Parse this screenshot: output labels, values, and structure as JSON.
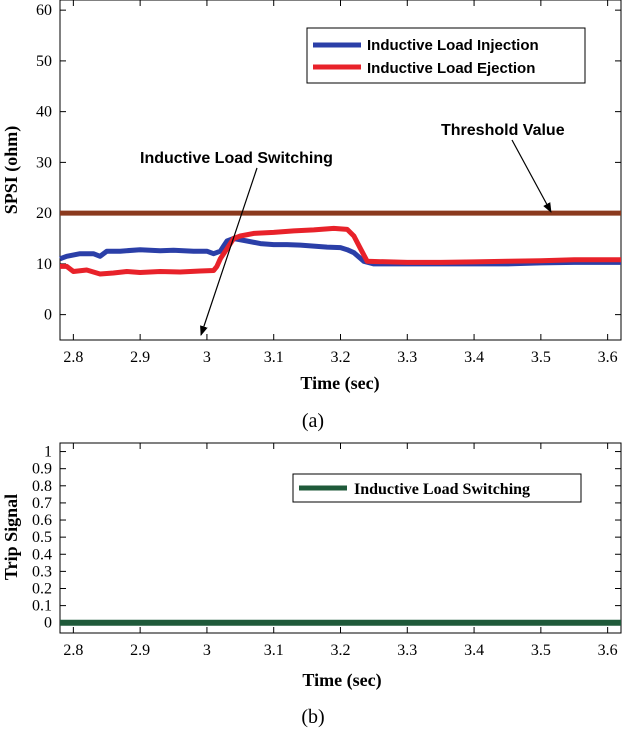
{
  "colors": {
    "injection": "#2b3fa8",
    "ejection": "#e8222a",
    "threshold": "#8b3a1e",
    "trip": "#1f5a3a",
    "axis": "#000000"
  },
  "chart_data": [
    {
      "type": "line",
      "caption": "(a)",
      "xlabel": "Time (sec)",
      "ylabel": "SPSI (ohm)",
      "xlim": [
        2.78,
        3.62
      ],
      "ylim": [
        -5,
        62
      ],
      "xticks": [
        2.8,
        2.9,
        3,
        3.1,
        3.2,
        3.3,
        3.4,
        3.5,
        3.6
      ],
      "xtick_labels": [
        "2.8",
        "2.9",
        "3",
        "3.1",
        "3.2",
        "3.3",
        "3.4",
        "3.5",
        "3.6"
      ],
      "yticks": [
        0,
        10,
        20,
        30,
        40,
        50,
        60
      ],
      "ytick_labels": [
        "0",
        "10",
        "20",
        "30",
        "40",
        "50",
        "60"
      ],
      "legend_position": "top-right",
      "series": [
        {
          "name": "Inductive Load Injection",
          "color_key": "injection",
          "x": [
            2.78,
            2.79,
            2.81,
            2.83,
            2.84,
            2.85,
            2.87,
            2.9,
            2.93,
            2.95,
            2.98,
            3.0,
            3.01,
            3.02,
            3.025,
            3.03,
            3.04,
            3.06,
            3.08,
            3.1,
            3.12,
            3.14,
            3.16,
            3.18,
            3.2,
            3.21,
            3.22,
            3.235,
            3.25,
            3.3,
            3.35,
            3.4,
            3.45,
            3.5,
            3.55,
            3.6,
            3.62
          ],
          "y": [
            11,
            11.5,
            12,
            12,
            11.5,
            12.5,
            12.5,
            12.8,
            12.6,
            12.7,
            12.5,
            12.5,
            12.0,
            12.5,
            13.5,
            14.5,
            15,
            14.5,
            14,
            13.8,
            13.8,
            13.7,
            13.5,
            13.3,
            13.2,
            12.8,
            12.2,
            10.5,
            10.0,
            10.0,
            10.0,
            10.0,
            10.0,
            10.2,
            10.3,
            10.3,
            10.3
          ]
        },
        {
          "name": "Inductive Load Ejection",
          "color_key": "ejection",
          "x": [
            2.78,
            2.79,
            2.8,
            2.82,
            2.84,
            2.86,
            2.88,
            2.9,
            2.93,
            2.96,
            2.99,
            3.01,
            3.015,
            3.02,
            3.03,
            3.04,
            3.05,
            3.07,
            3.1,
            3.13,
            3.16,
            3.19,
            3.21,
            3.22,
            3.23,
            3.24,
            3.3,
            3.35,
            3.4,
            3.45,
            3.5,
            3.55,
            3.6,
            3.62
          ],
          "y": [
            9.5,
            9.5,
            8.5,
            8.8,
            8.0,
            8.2,
            8.5,
            8.3,
            8.5,
            8.4,
            8.6,
            8.7,
            9.5,
            11.0,
            13.0,
            15.0,
            15.5,
            16.0,
            16.2,
            16.5,
            16.7,
            17.0,
            16.8,
            15.5,
            13.0,
            10.5,
            10.3,
            10.3,
            10.4,
            10.5,
            10.6,
            10.8,
            10.8,
            10.8
          ]
        },
        {
          "name": "Threshold Value",
          "color_key": "threshold",
          "x": [
            2.78,
            3.62
          ],
          "y": [
            20,
            20
          ]
        }
      ],
      "annotations": [
        {
          "text": "Threshold Value",
          "xy": [
            3.525,
            20
          ]
        },
        {
          "text": "Inductive Load Switching",
          "xy": [
            3.0,
            -5
          ]
        }
      ]
    },
    {
      "type": "line",
      "caption": "(b)",
      "xlabel": "Time (sec)",
      "ylabel": "Trip Signal",
      "xlim": [
        2.78,
        3.62
      ],
      "ylim": [
        -0.06,
        1.05
      ],
      "xticks": [
        2.8,
        2.9,
        3,
        3.1,
        3.2,
        3.3,
        3.4,
        3.5,
        3.6
      ],
      "xtick_labels": [
        "2.8",
        "2.9",
        "3",
        "3.1",
        "3.2",
        "3.3",
        "3.4",
        "3.5",
        "3.6"
      ],
      "yticks": [
        0,
        0.1,
        0.2,
        0.3,
        0.4,
        0.5,
        0.6,
        0.7,
        0.8,
        0.9,
        1
      ],
      "ytick_labels": [
        "0",
        "0.1",
        "0.2",
        "0.3",
        "0.4",
        "0.5",
        "0.6",
        "0.7",
        "0.8",
        "0.9",
        "1"
      ],
      "legend_position": "top-right",
      "series": [
        {
          "name": "Inductive Load Switching",
          "color_key": "trip",
          "x": [
            2.78,
            3.62
          ],
          "y": [
            0,
            0
          ]
        }
      ]
    }
  ]
}
